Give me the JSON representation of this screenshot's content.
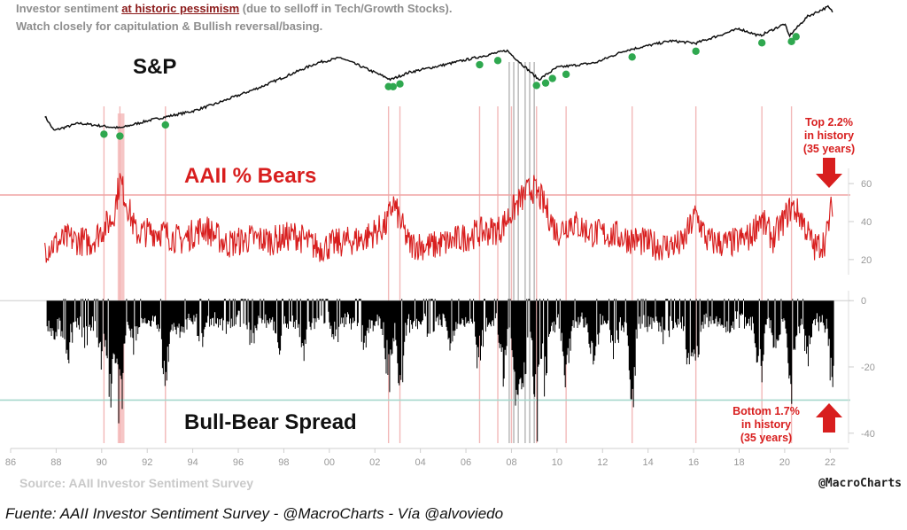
{
  "header": {
    "line1_prefix": "Investor sentiment ",
    "line1_highlight": "at historic pessimism",
    "line1_suffix": " (due to selloff in Tech/Growth Stocks).",
    "line2": "Watch closely for capitulation & Bullish reversal/basing."
  },
  "panels": {
    "sp_title": "S&P",
    "bears_title": "AAII % Bears",
    "spread_title": "Bull-Bear Spread"
  },
  "annotations": {
    "top": [
      "Top 2.2%",
      "in history",
      "(35 years)"
    ],
    "bottom": [
      "Bottom 1.7%",
      "in history",
      "(35 years)"
    ]
  },
  "source": "Source: AAII Investor Sentiment Survey",
  "brand": "@MacroCharts",
  "footer": "Fuente: AAII Investor Sentiment Survey - @MacroCharts - Vía @alvoviedo",
  "colors": {
    "bears": "#d81e1e",
    "spread": "#000000",
    "sp": "#111111",
    "marker": "#2fa84f",
    "event_line": "#f2b8b8",
    "annotation": "#d81e1e"
  },
  "chart_data": {
    "type": "line",
    "x_axis": {
      "range": [
        1986.0,
        2022.3
      ],
      "tick_labels": [
        "86",
        "88",
        "90",
        "92",
        "94",
        "96",
        "98",
        "00",
        "02",
        "04",
        "06",
        "08",
        "10",
        "12",
        "14",
        "16",
        "18",
        "20",
        "22"
      ]
    },
    "panels": [
      {
        "name": "S&P",
        "scale": "log",
        "points": [
          [
            1987.5,
            2.2
          ],
          [
            1987.9,
            1.9
          ],
          [
            1989.0,
            2.05
          ],
          [
            1990.8,
            1.95
          ],
          [
            1992.0,
            2.1
          ],
          [
            1994.0,
            2.3
          ],
          [
            1995.0,
            2.45
          ],
          [
            1997.0,
            2.8
          ],
          [
            1999.5,
            3.3
          ],
          [
            2000.5,
            3.4
          ],
          [
            2001.5,
            3.2
          ],
          [
            2002.7,
            2.95
          ],
          [
            2003.5,
            3.1
          ],
          [
            2005.0,
            3.25
          ],
          [
            2007.8,
            3.55
          ],
          [
            2009.2,
            2.95
          ],
          [
            2010.0,
            3.2
          ],
          [
            2011.7,
            3.3
          ],
          [
            2013.0,
            3.55
          ],
          [
            2015.0,
            3.75
          ],
          [
            2016.1,
            3.7
          ],
          [
            2018.0,
            4.0
          ],
          [
            2018.9,
            3.85
          ],
          [
            2020.0,
            4.1
          ],
          [
            2020.2,
            3.85
          ],
          [
            2021.0,
            4.25
          ],
          [
            2021.9,
            4.45
          ],
          [
            2022.1,
            4.35
          ]
        ],
        "markers_x": [
          1990.1,
          1990.8,
          1992.8,
          2002.6,
          2002.8,
          2003.1,
          2006.6,
          2007.4,
          2009.1,
          2009.5,
          2009.8,
          2010.4,
          2013.3,
          2016.1,
          2019.0,
          2020.3,
          2020.5
        ]
      },
      {
        "name": "AAII % Bears",
        "yticks": [
          20,
          40,
          60
        ],
        "ylim": [
          12,
          68
        ],
        "threshold": 54,
        "points": [
          [
            1987.5,
            26
          ],
          [
            1988.5,
            31
          ],
          [
            1989.5,
            29
          ],
          [
            1990.5,
            42
          ],
          [
            1990.8,
            62
          ],
          [
            1991.5,
            34
          ],
          [
            1992.5,
            35
          ],
          [
            1993.5,
            30
          ],
          [
            1994.5,
            37
          ],
          [
            1995.5,
            28
          ],
          [
            1996.5,
            31
          ],
          [
            1997.5,
            30
          ],
          [
            1998.5,
            33
          ],
          [
            1999.5,
            26
          ],
          [
            2000.5,
            29
          ],
          [
            2001.5,
            31
          ],
          [
            2002.5,
            38
          ],
          [
            2002.8,
            50
          ],
          [
            2003.5,
            28
          ],
          [
            2004.5,
            27
          ],
          [
            2005.5,
            30
          ],
          [
            2006.5,
            34
          ],
          [
            2007.5,
            36
          ],
          [
            2008.3,
            50
          ],
          [
            2008.9,
            58
          ],
          [
            2009.3,
            52
          ],
          [
            2010.0,
            34
          ],
          [
            2010.6,
            40
          ],
          [
            2011.5,
            34
          ],
          [
            2012.5,
            33
          ],
          [
            2013.5,
            30
          ],
          [
            2014.5,
            27
          ],
          [
            2015.5,
            28
          ],
          [
            2016.1,
            44
          ],
          [
            2016.6,
            30
          ],
          [
            2017.5,
            28
          ],
          [
            2018.5,
            32
          ],
          [
            2018.9,
            42
          ],
          [
            2019.5,
            31
          ],
          [
            2020.3,
            48
          ],
          [
            2020.7,
            43
          ],
          [
            2021.3,
            26
          ],
          [
            2021.8,
            30
          ],
          [
            2022.1,
            50
          ]
        ]
      },
      {
        "name": "Bull-Bear Spread",
        "yticks": [
          0,
          -20,
          -40
        ],
        "ylim": [
          -43,
          3
        ],
        "threshold": -30,
        "bars": [
          [
            1987.8,
            -12
          ],
          [
            1988.5,
            -20
          ],
          [
            1989.3,
            -14
          ],
          [
            1990.0,
            -22
          ],
          [
            1990.4,
            -32
          ],
          [
            1990.8,
            -42
          ],
          [
            1991.4,
            -15
          ],
          [
            1992.8,
            -28
          ],
          [
            1993.5,
            -10
          ],
          [
            1994.4,
            -18
          ],
          [
            1995.5,
            -8
          ],
          [
            1996.6,
            -12
          ],
          [
            1997.8,
            -15
          ],
          [
            1998.8,
            -18
          ],
          [
            2000.3,
            -12
          ],
          [
            2001.5,
            -14
          ],
          [
            2002.6,
            -28
          ],
          [
            2003.1,
            -35
          ],
          [
            2004.4,
            -12
          ],
          [
            2005.4,
            -14
          ],
          [
            2006.6,
            -22
          ],
          [
            2007.6,
            -26
          ],
          [
            2008.2,
            -35
          ],
          [
            2008.5,
            -40
          ],
          [
            2009.1,
            -42
          ],
          [
            2009.5,
            -30
          ],
          [
            2010.4,
            -26
          ],
          [
            2011.6,
            -22
          ],
          [
            2012.5,
            -18
          ],
          [
            2013.3,
            -34
          ],
          [
            2014.8,
            -16
          ],
          [
            2015.8,
            -22
          ],
          [
            2016.1,
            -29
          ],
          [
            2017.5,
            -10
          ],
          [
            2018.9,
            -29
          ],
          [
            2019.6,
            -18
          ],
          [
            2020.3,
            -30
          ],
          [
            2021.0,
            -18
          ],
          [
            2022.1,
            -28
          ]
        ]
      }
    ],
    "event_lines_x": [
      1990.1,
      1990.8,
      1992.8,
      2002.6,
      2003.1,
      2006.6,
      2007.4,
      2008.0,
      2009.1,
      2010.4,
      2013.3,
      2016.1,
      2019.0,
      2020.3
    ]
  }
}
